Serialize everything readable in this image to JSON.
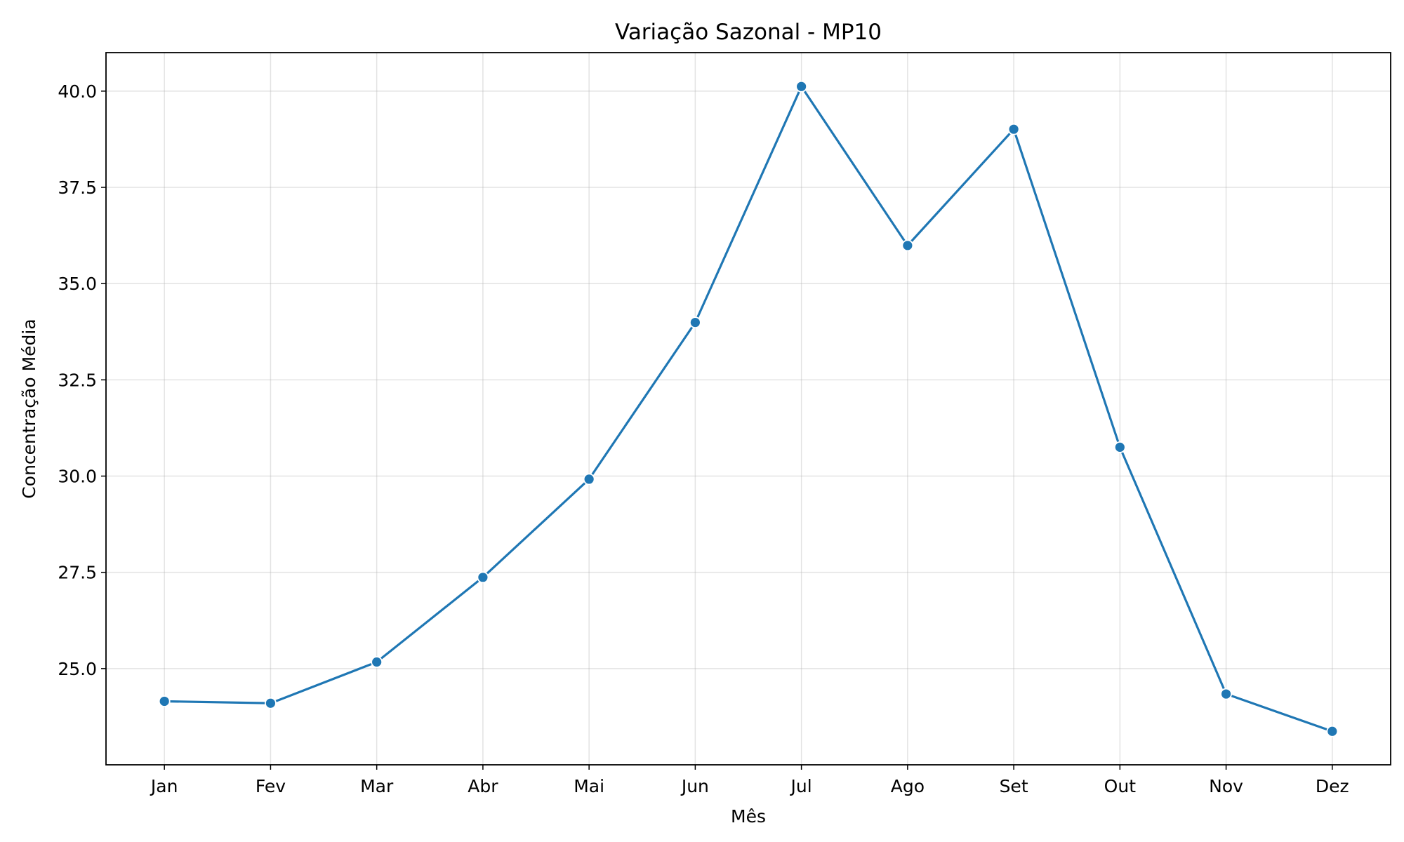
{
  "chart_data": {
    "type": "line",
    "title": "Variação Sazonal - MP10",
    "xlabel": "Mês",
    "ylabel": "Concentração Média",
    "categories": [
      "Jan",
      "Fev",
      "Mar",
      "Abr",
      "Mai",
      "Jun",
      "Jul",
      "Ago",
      "Set",
      "Out",
      "Nov",
      "Dez"
    ],
    "series": [
      {
        "values": [
          24.15,
          24.1,
          25.17,
          27.37,
          29.92,
          33.99,
          40.12,
          35.99,
          39.01,
          30.75,
          24.34,
          23.37
        ]
      }
    ],
    "ylim": [
      22.5,
      41.0
    ],
    "yticks": [
      25.0,
      27.5,
      30.0,
      32.5,
      35.0,
      37.5,
      40.0
    ],
    "ytick_labels": [
      "25.0",
      "27.5",
      "30.0",
      "32.5",
      "35.0",
      "37.5",
      "40.0"
    ],
    "grid": true,
    "legend": "none",
    "colors": {
      "series": "#1f77b4"
    }
  }
}
